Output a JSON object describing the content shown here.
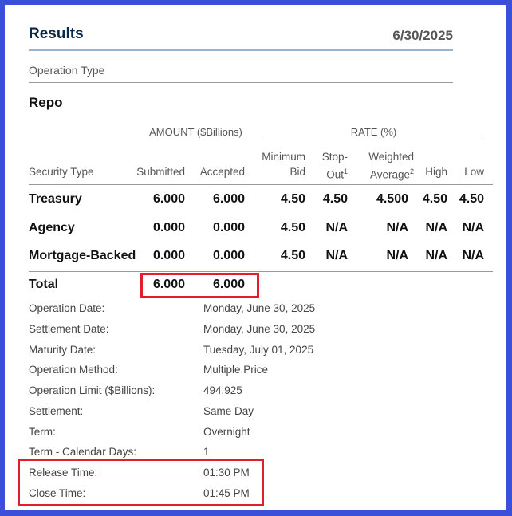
{
  "header": {
    "title": "Results",
    "date": "6/30/2025"
  },
  "operation_type": {
    "label": "Operation Type",
    "value": "Repo"
  },
  "table": {
    "group_amount": "AMOUNT ($Billions)",
    "group_rate": "RATE (%)",
    "columns": {
      "security_type": "Security Type",
      "submitted": "Submitted",
      "accepted": "Accepted",
      "minimum_bid_1": "Minimum",
      "minimum_bid_2": "Bid",
      "stop_out_1": "Stop-",
      "stop_out_2": "Out",
      "stop_out_sup": "1",
      "weighted_average_1": "Weighted",
      "weighted_average_2": "Average",
      "weighted_average_sup": "2",
      "high": "High",
      "low": "Low"
    },
    "rows": [
      {
        "security_type": "Treasury",
        "submitted": "6.000",
        "accepted": "6.000",
        "minimum_bid": "4.50",
        "stop_out": "4.50",
        "weighted_average": "4.500",
        "high": "4.50",
        "low": "4.50"
      },
      {
        "security_type": "Agency",
        "submitted": "0.000",
        "accepted": "0.000",
        "minimum_bid": "4.50",
        "stop_out": "N/A",
        "weighted_average": "N/A",
        "high": "N/A",
        "low": "N/A"
      },
      {
        "security_type": "Mortgage-Backed",
        "submitted": "0.000",
        "accepted": "0.000",
        "minimum_bid": "4.50",
        "stop_out": "N/A",
        "weighted_average": "N/A",
        "high": "N/A",
        "low": "N/A"
      }
    ],
    "total": {
      "label": "Total",
      "submitted": "6.000",
      "accepted": "6.000"
    }
  },
  "details": [
    {
      "label": "Operation Date:",
      "value": "Monday, June 30, 2025"
    },
    {
      "label": "Settlement Date:",
      "value": "Monday, June 30, 2025"
    },
    {
      "label": "Maturity Date:",
      "value": "Tuesday, July 01, 2025"
    },
    {
      "label": "Operation Method:",
      "value": "Multiple Price"
    },
    {
      "label": "Operation Limit ($Billions):",
      "value": "494.925"
    },
    {
      "label": "Settlement:",
      "value": "Same Day"
    },
    {
      "label": "Term:",
      "value": "Overnight"
    },
    {
      "label": "Term - Calendar Days:",
      "value": "1"
    },
    {
      "label": "Release Time:",
      "value": "01:30 PM"
    },
    {
      "label": "Close Time:",
      "value": "01:45 PM"
    }
  ],
  "colors": {
    "frame": "#3b4fd8",
    "highlight": "#e01e2e",
    "title": "#0b2a4a"
  }
}
